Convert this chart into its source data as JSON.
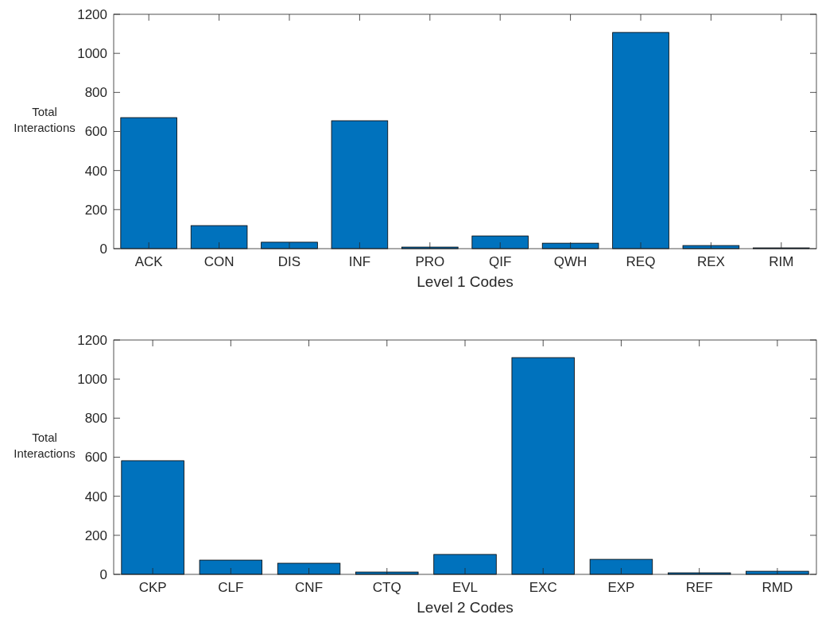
{
  "chart_data": [
    {
      "type": "bar",
      "xlabel": "Level 1 Codes",
      "ylabel": "Total Interactions",
      "categories": [
        "ACK",
        "CON",
        "DIS",
        "INF",
        "PRO",
        "QIF",
        "QWH",
        "REQ",
        "REX",
        "RIM"
      ],
      "values": [
        671,
        118,
        33,
        655,
        8,
        65,
        28,
        1107,
        16,
        4
      ],
      "color": "#0072bd",
      "ylim": [
        0,
        1200
      ],
      "yticks": [
        0,
        200,
        400,
        600,
        800,
        1000,
        1200
      ]
    },
    {
      "type": "bar",
      "xlabel": "Level 2 Codes",
      "ylabel": "Total Interactions",
      "categories": [
        "CKP",
        "CLF",
        "CNF",
        "CTQ",
        "EVL",
        "EXC",
        "EXP",
        "REF",
        "RMD"
      ],
      "values": [
        582,
        73,
        57,
        12,
        102,
        1110,
        77,
        8,
        16
      ],
      "color": "#0072bd",
      "ylim": [
        0,
        1200
      ],
      "yticks": [
        0,
        200,
        400,
        600,
        800,
        1000,
        1200
      ]
    }
  ]
}
